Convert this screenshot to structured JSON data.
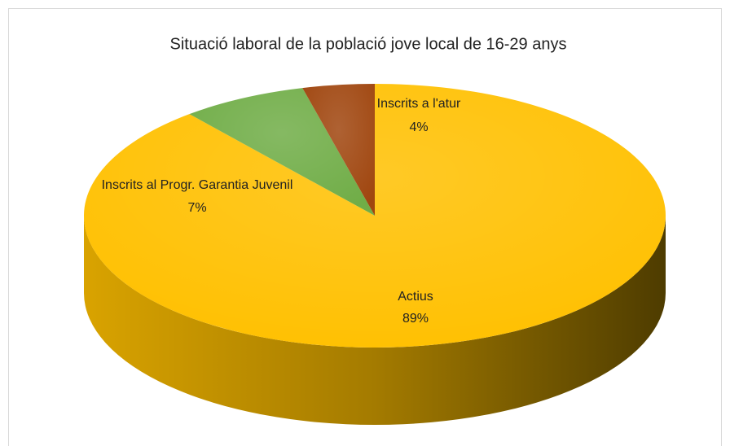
{
  "chart_data": {
    "type": "pie3d",
    "title": "Situació laboral de la població jove local de 16-29 anys",
    "categories": [
      "Actius",
      "Inscrits al Progr. Garantia Juvenil",
      "Inscrits a l'atur"
    ],
    "values": [
      89,
      7,
      4
    ],
    "value_labels": [
      "89%",
      "7%",
      "4%"
    ],
    "colors": [
      "#ffc000",
      "#70ad47",
      "#a0460f"
    ]
  }
}
